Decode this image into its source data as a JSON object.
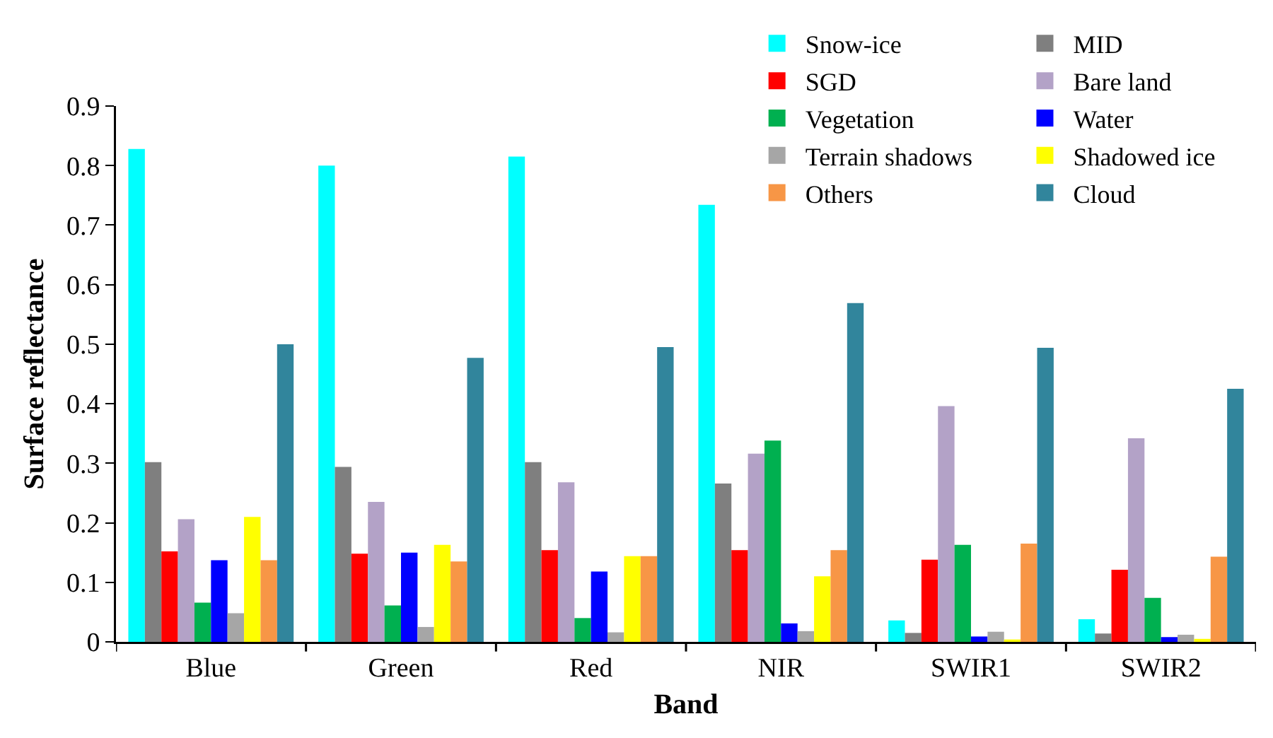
{
  "chart_data": {
    "type": "bar",
    "xlabel": "Band",
    "ylabel": "Surface reflectance",
    "categories": [
      "Blue",
      "Green",
      "Red",
      "NIR",
      "SWIR1",
      "SWIR2"
    ],
    "series": [
      {
        "name": "Snow-ice",
        "color": "#00ffff",
        "values": [
          0.828,
          0.8,
          0.815,
          0.734,
          0.036,
          0.038
        ]
      },
      {
        "name": "MID",
        "color": "#7f7f7f",
        "values": [
          0.302,
          0.294,
          0.302,
          0.266,
          0.015,
          0.014
        ]
      },
      {
        "name": "SGD",
        "color": "#ff0000",
        "values": [
          0.152,
          0.148,
          0.154,
          0.154,
          0.138,
          0.121
        ]
      },
      {
        "name": "Bare land",
        "color": "#b3a2c7",
        "values": [
          0.206,
          0.235,
          0.268,
          0.316,
          0.396,
          0.342
        ]
      },
      {
        "name": "Vegetation",
        "color": "#00b050",
        "values": [
          0.066,
          0.061,
          0.04,
          0.338,
          0.163,
          0.074
        ]
      },
      {
        "name": "Water",
        "color": "#0000ff",
        "values": [
          0.137,
          0.15,
          0.118,
          0.031,
          0.009,
          0.008
        ]
      },
      {
        "name": "Terrain shadows",
        "color": "#a6a6a6",
        "values": [
          0.048,
          0.025,
          0.016,
          0.018,
          0.017,
          0.012
        ]
      },
      {
        "name": "Shadowed ice",
        "color": "#ffff00",
        "values": [
          0.21,
          0.163,
          0.144,
          0.11,
          0.004,
          0.005
        ]
      },
      {
        "name": "Others",
        "color": "#f79646",
        "values": [
          0.137,
          0.135,
          0.144,
          0.154,
          0.165,
          0.143
        ]
      },
      {
        "name": "Cloud",
        "color": "#31859c",
        "values": [
          0.5,
          0.477,
          0.495,
          0.569,
          0.494,
          0.425
        ]
      }
    ],
    "ylim": [
      0,
      0.9
    ],
    "yticks": [
      0,
      0.1,
      0.2,
      0.3,
      0.4,
      0.5,
      0.6,
      0.7,
      0.8,
      0.9
    ],
    "grid": false,
    "legend": "top right"
  }
}
